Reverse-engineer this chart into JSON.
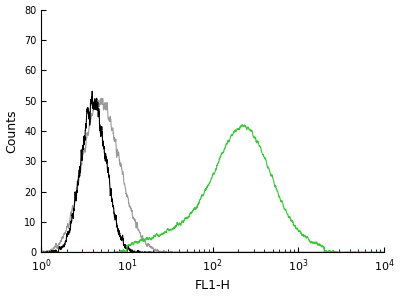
{
  "xlabel": "FL1-H",
  "ylabel": "Counts",
  "xlim_log": [
    1,
    10000
  ],
  "ylim": [
    0,
    80
  ],
  "yticks": [
    0,
    10,
    20,
    30,
    40,
    50,
    60,
    70,
    80
  ],
  "xticks_log": [
    1,
    10,
    100,
    1000,
    10000
  ],
  "black_color": "#000000",
  "grey_color": "#999999",
  "green_color": "#33cc33",
  "background_color": "#ffffff",
  "linewidth": 0.8,
  "seed": 7
}
